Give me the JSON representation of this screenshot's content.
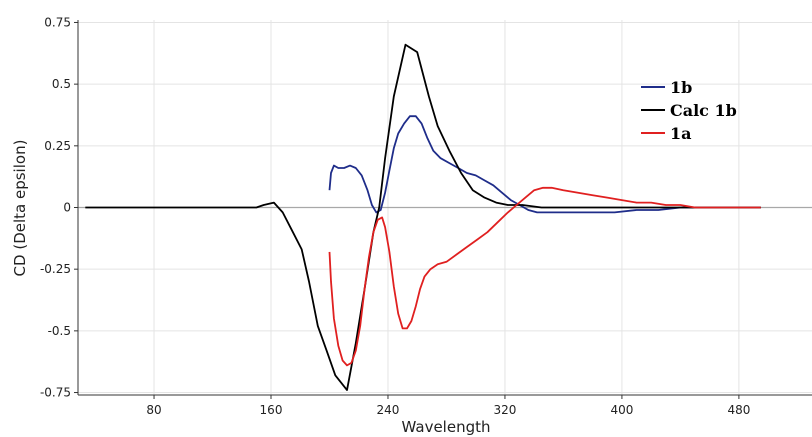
{
  "chart_data": {
    "type": "line",
    "title": "",
    "xlabel": "Wavelength",
    "ylabel": "CD (Delta epsilon)",
    "xlim": [
      28,
      530
    ],
    "ylim": [
      -0.76,
      0.76
    ],
    "xticks": [
      80,
      160,
      240,
      320,
      400,
      480
    ],
    "xtick_labels": [
      "80",
      "160",
      "240",
      "320",
      "400",
      "480"
    ],
    "yticks": [
      0.75,
      0.5,
      0.25,
      0,
      -0.25,
      -0.5,
      -0.75
    ],
    "ytick_labels": [
      "0.75",
      "0.5",
      "0.25",
      "0",
      "-0.25",
      "-0.5",
      "-0.75"
    ],
    "grid": true,
    "legend_position": "top-right",
    "series": [
      {
        "name": "1b",
        "color": "#1f2d8a",
        "points": [
          [
            200,
            0.07
          ],
          [
            201,
            0.14
          ],
          [
            203,
            0.17
          ],
          [
            206,
            0.16
          ],
          [
            210,
            0.16
          ],
          [
            214,
            0.17
          ],
          [
            218,
            0.16
          ],
          [
            222,
            0.13
          ],
          [
            226,
            0.07
          ],
          [
            229,
            0.01
          ],
          [
            232,
            -0.02
          ],
          [
            235,
            -0.01
          ],
          [
            238,
            0.06
          ],
          [
            241,
            0.15
          ],
          [
            244,
            0.24
          ],
          [
            247,
            0.3
          ],
          [
            251,
            0.34
          ],
          [
            255,
            0.37
          ],
          [
            259,
            0.37
          ],
          [
            263,
            0.34
          ],
          [
            267,
            0.28
          ],
          [
            271,
            0.23
          ],
          [
            276,
            0.2
          ],
          [
            282,
            0.18
          ],
          [
            288,
            0.16
          ],
          [
            294,
            0.14
          ],
          [
            300,
            0.13
          ],
          [
            306,
            0.11
          ],
          [
            312,
            0.09
          ],
          [
            318,
            0.06
          ],
          [
            324,
            0.03
          ],
          [
            330,
            0.01
          ],
          [
            336,
            -0.01
          ],
          [
            342,
            -0.02
          ],
          [
            350,
            -0.02
          ],
          [
            365,
            -0.02
          ],
          [
            380,
            -0.02
          ],
          [
            395,
            -0.02
          ],
          [
            410,
            -0.01
          ],
          [
            425,
            -0.01
          ],
          [
            440,
            0.0
          ],
          [
            460,
            0.0
          ],
          [
            480,
            0.0
          ],
          [
            495,
            0.0
          ]
        ]
      },
      {
        "name": "Calc 1b",
        "color": "#000000",
        "points": [
          [
            33,
            0.0
          ],
          [
            60,
            0.0
          ],
          [
            100,
            0.0
          ],
          [
            140,
            0.0
          ],
          [
            150,
            0.0
          ],
          [
            155,
            0.01
          ],
          [
            162,
            0.02
          ],
          [
            168,
            -0.02
          ],
          [
            175,
            -0.1
          ],
          [
            181,
            -0.17
          ],
          [
            186,
            -0.3
          ],
          [
            192,
            -0.48
          ],
          [
            198,
            -0.58
          ],
          [
            204,
            -0.68
          ],
          [
            212,
            -0.74
          ],
          [
            218,
            -0.55
          ],
          [
            224,
            -0.33
          ],
          [
            230,
            -0.1
          ],
          [
            234,
            0.0
          ],
          [
            238,
            0.2
          ],
          [
            244,
            0.45
          ],
          [
            252,
            0.66
          ],
          [
            260,
            0.63
          ],
          [
            268,
            0.45
          ],
          [
            274,
            0.33
          ],
          [
            282,
            0.23
          ],
          [
            290,
            0.14
          ],
          [
            298,
            0.07
          ],
          [
            306,
            0.04
          ],
          [
            314,
            0.02
          ],
          [
            322,
            0.01
          ],
          [
            332,
            0.01
          ],
          [
            345,
            0.0
          ],
          [
            380,
            0.0
          ],
          [
            420,
            0.0
          ],
          [
            440,
            0.0
          ],
          [
            470,
            0.0
          ],
          [
            495,
            0.0
          ]
        ]
      },
      {
        "name": "1a",
        "color": "#e02020",
        "points": [
          [
            200,
            -0.18
          ],
          [
            201,
            -0.3
          ],
          [
            203,
            -0.45
          ],
          [
            206,
            -0.56
          ],
          [
            209,
            -0.62
          ],
          [
            212,
            -0.64
          ],
          [
            215,
            -0.63
          ],
          [
            218,
            -0.58
          ],
          [
            221,
            -0.48
          ],
          [
            224,
            -0.33
          ],
          [
            227,
            -0.2
          ],
          [
            230,
            -0.1
          ],
          [
            233,
            -0.05
          ],
          [
            236,
            -0.04
          ],
          [
            238,
            -0.08
          ],
          [
            241,
            -0.18
          ],
          [
            244,
            -0.32
          ],
          [
            247,
            -0.43
          ],
          [
            250,
            -0.49
          ],
          [
            253,
            -0.49
          ],
          [
            256,
            -0.46
          ],
          [
            259,
            -0.4
          ],
          [
            262,
            -0.33
          ],
          [
            265,
            -0.28
          ],
          [
            269,
            -0.25
          ],
          [
            274,
            -0.23
          ],
          [
            280,
            -0.22
          ],
          [
            287,
            -0.19
          ],
          [
            294,
            -0.16
          ],
          [
            301,
            -0.13
          ],
          [
            308,
            -0.1
          ],
          [
            315,
            -0.06
          ],
          [
            322,
            -0.02
          ],
          [
            328,
            0.01
          ],
          [
            334,
            0.04
          ],
          [
            340,
            0.07
          ],
          [
            346,
            0.08
          ],
          [
            352,
            0.08
          ],
          [
            360,
            0.07
          ],
          [
            370,
            0.06
          ],
          [
            380,
            0.05
          ],
          [
            390,
            0.04
          ],
          [
            400,
            0.03
          ],
          [
            410,
            0.02
          ],
          [
            420,
            0.02
          ],
          [
            430,
            0.01
          ],
          [
            440,
            0.01
          ],
          [
            450,
            0.0
          ],
          [
            460,
            0.0
          ],
          [
            470,
            0.0
          ],
          [
            480,
            0.0
          ],
          [
            490,
            0.0
          ],
          [
            495,
            0.0
          ]
        ]
      }
    ]
  }
}
